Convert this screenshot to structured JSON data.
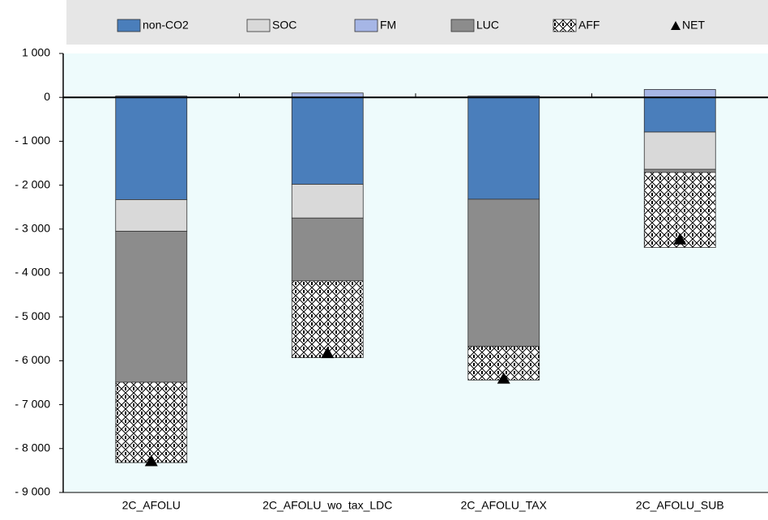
{
  "chart_data": {
    "type": "bar",
    "stacked": true,
    "categories": [
      "2C_AFOLU",
      "2C_AFOLU_wo_tax_LDC",
      "2C_AFOLU_TAX",
      "2C_AFOLU_SUB"
    ],
    "series": [
      {
        "name": "non-CO2",
        "color": "#4a7ebb",
        "values": [
          -2330,
          -1980,
          -2320,
          -790
        ]
      },
      {
        "name": "SOC",
        "color": "#d9d9d9",
        "values": [
          -720,
          -770,
          0,
          -850
        ]
      },
      {
        "name": "FM",
        "color": "#a6b6e6",
        "values": [
          30,
          100,
          30,
          180
        ]
      },
      {
        "name": "LUC",
        "color": "#8c8c8c",
        "values": [
          -3440,
          -1430,
          -3350,
          -70
        ]
      },
      {
        "name": "AFF",
        "color": "#ffffff",
        "pattern": "crosshatch",
        "values": [
          -1830,
          -1750,
          -770,
          -1710
        ]
      },
      {
        "name": "NET",
        "color": "#000000",
        "type": "marker",
        "values": [
          -8290,
          -5830,
          -6410,
          -3240
        ]
      }
    ],
    "ylim": [
      -9000,
      1000
    ],
    "yticks": [
      {
        "value": 1000,
        "label": "1 000"
      },
      0,
      {
        "value": -1000,
        "label": "- 1 000"
      },
      {
        "value": -2000,
        "label": "- 2 000"
      },
      {
        "value": -3000,
        "label": "- 3 000"
      },
      {
        "value": -4000,
        "label": "- 4 000"
      },
      {
        "value": -5000,
        "label": "- 5 000"
      },
      {
        "value": -6000,
        "label": "- 6 000"
      },
      {
        "value": -7000,
        "label": "- 7 000"
      },
      {
        "value": -8000,
        "label": "- 8 000"
      },
      {
        "value": -9000,
        "label": "- 9 000"
      }
    ],
    "legend": "top"
  }
}
